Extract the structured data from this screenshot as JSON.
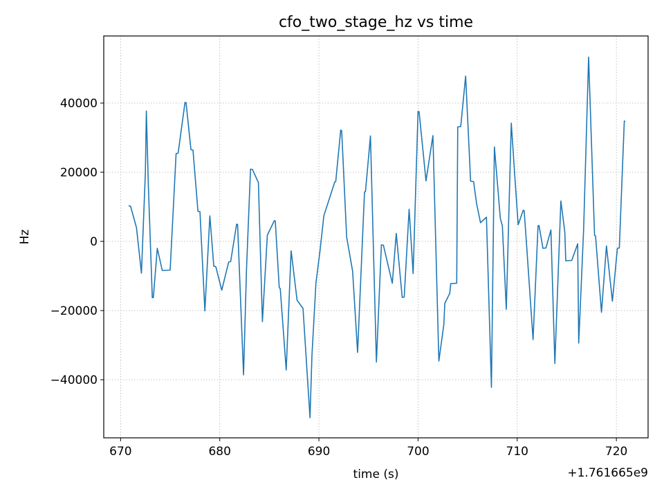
{
  "chart_data": {
    "type": "line",
    "title": "cfo_two_stage_hz vs time",
    "xlabel": "time (s)",
    "ylabel": "Hz",
    "x_offset_label": "+1.761665e9",
    "xlim": [
      668.3,
      723.2
    ],
    "ylim": [
      -56800,
      59400
    ],
    "xticks": [
      670,
      680,
      690,
      700,
      710,
      720
    ],
    "xtick_labels": [
      "670",
      "680",
      "690",
      "700",
      "710",
      "720"
    ],
    "yticks": [
      -40000,
      -20000,
      0,
      20000,
      40000
    ],
    "ytick_labels": [
      "−40000",
      "−20000",
      "0",
      "20000",
      "40000"
    ],
    "grid": true,
    "line_color": "#1f77b4",
    "series": [
      {
        "x": [
          670.8,
          671.0,
          671.6,
          672.1,
          672.5,
          672.6,
          672.8,
          673.2,
          673.3,
          673.7,
          674.2,
          675.0,
          675.6,
          675.8,
          676.5,
          676.6,
          677.1,
          677.3,
          677.8,
          678.0,
          678.5,
          679.0,
          679.4,
          679.6,
          680.2,
          680.9,
          681.1,
          681.7,
          681.8,
          682.4,
          682.7,
          683.1,
          683.3,
          683.9,
          684.3,
          684.8,
          685.5,
          685.6,
          686.0,
          686.1,
          686.7,
          687.2,
          687.8,
          688.4,
          689.1,
          689.3,
          689.7,
          690.1,
          690.5,
          691.6,
          691.7,
          692.2,
          692.3,
          692.8,
          693.4,
          693.9,
          694.6,
          694.7,
          695.2,
          695.8,
          696.3,
          696.5,
          697.4,
          697.8,
          698.4,
          698.6,
          699.1,
          699.5,
          700.0,
          700.1,
          700.8,
          701.5,
          702.1,
          702.6,
          702.7,
          703.2,
          703.3,
          703.9,
          704.0,
          704.3,
          704.8,
          705.3,
          705.6,
          705.9,
          706.3,
          706.9,
          707.4,
          707.7,
          708.3,
          708.5,
          708.9,
          709.4,
          709.8,
          710.1,
          710.6,
          710.7,
          710.9,
          711.6,
          712.1,
          712.2,
          712.6,
          712.9,
          713.4,
          713.8,
          714.4,
          714.8,
          714.9,
          715.5,
          716.1,
          716.2,
          716.7,
          717.2,
          717.8,
          717.9,
          718.5,
          719.0,
          719.6,
          720.1,
          720.3,
          720.8,
          720.9
        ],
        "y": [
          10300,
          10200,
          4000,
          -9200,
          20000,
          37700,
          16000,
          -16300,
          -16200,
          -2000,
          -8400,
          -8300,
          25400,
          25500,
          40200,
          40100,
          26500,
          26400,
          8700,
          8600,
          -20100,
          7400,
          -7200,
          -7300,
          -14100,
          -6000,
          -5800,
          5000,
          4900,
          -38600,
          -8000,
          20900,
          20800,
          17000,
          -23200,
          1800,
          6000,
          5900,
          -13300,
          -13700,
          -37200,
          -2700,
          -17000,
          -19400,
          -51000,
          -33000,
          -12000,
          -3000,
          7400,
          17200,
          17300,
          32200,
          32000,
          1200,
          -8600,
          -32100,
          14300,
          14400,
          30500,
          -34900,
          -1000,
          -1100,
          -12100,
          2300,
          -16200,
          -16100,
          9300,
          -9300,
          37600,
          37500,
          17500,
          30600,
          -34600,
          -24000,
          -17900,
          -15000,
          -12200,
          -12100,
          33100,
          33200,
          47800,
          17400,
          17300,
          11000,
          5400,
          7000,
          -42200,
          27300,
          6600,
          4500,
          -19600,
          34200,
          17000,
          4800,
          9000,
          8900,
          800,
          -28400,
          4500,
          4600,
          -2000,
          -1900,
          3300,
          -35300,
          11700,
          2700,
          -5600,
          -5500,
          -700,
          -29400,
          3500,
          53300,
          1700,
          1600,
          -20500,
          -1300,
          -17300,
          -2000,
          -1900,
          34800,
          34700
        ]
      }
    ]
  }
}
